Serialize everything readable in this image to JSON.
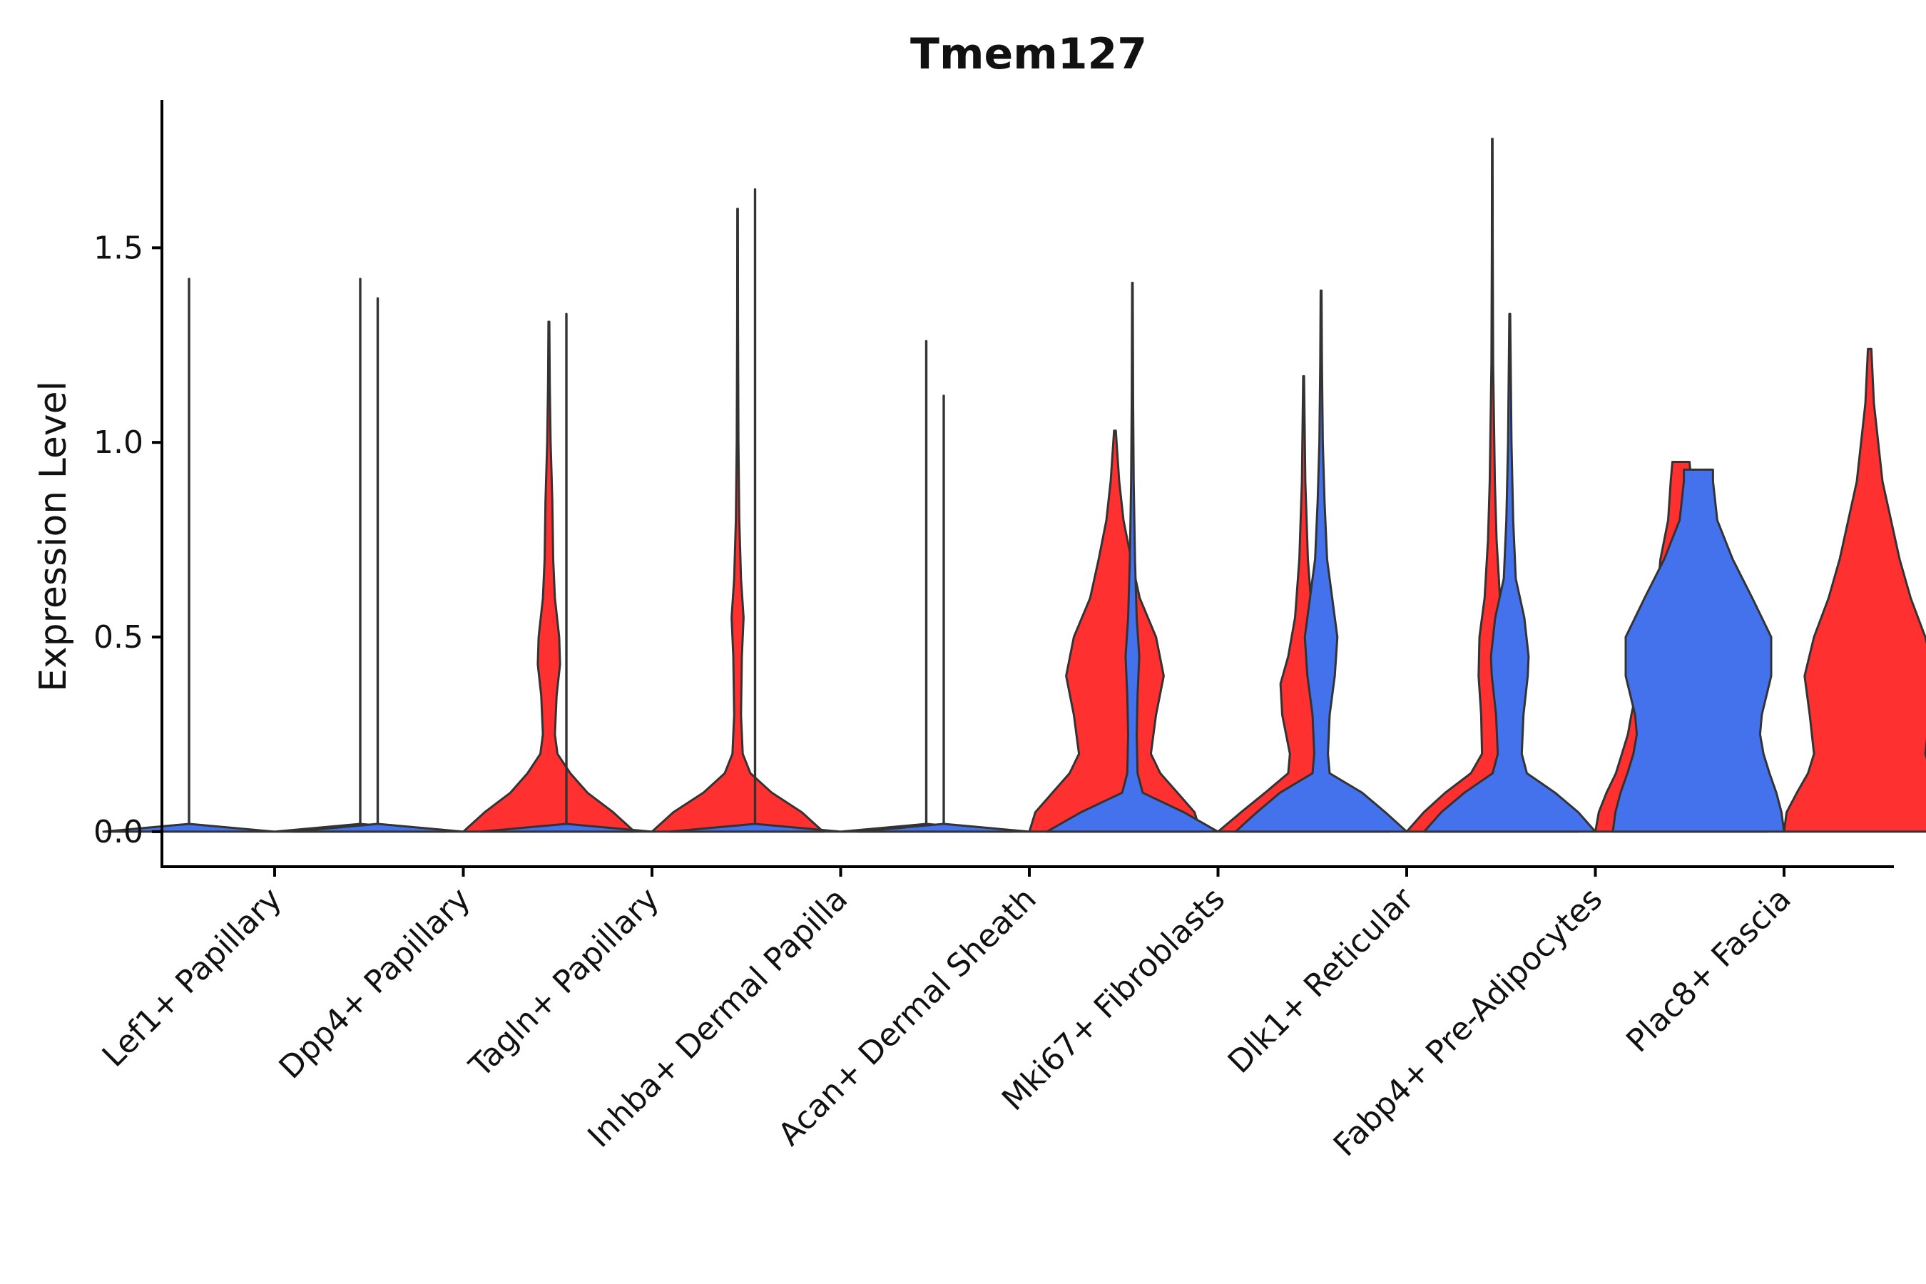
{
  "chart_data": {
    "type": "violin",
    "title": "Tmem127",
    "xlabel": "",
    "ylabel": "Expression Level",
    "ylim": [
      -0.09,
      1.88
    ],
    "yticks": [
      0.0,
      0.5,
      1.0,
      1.5
    ],
    "ytick_labels": [
      "0.0",
      "0.5",
      "1.0",
      "1.5"
    ],
    "grid": false,
    "legend": "none",
    "colors": {
      "blue": "#4471EC",
      "red": "#FF3030",
      "outline": "#333333"
    },
    "categories": [
      "Lef1+ Papillary",
      "Dpp4+ Papillary",
      "Tagln+ Papillary",
      "Inhba+ Dermal Papilla",
      "Acan+ Dermal Sheath",
      "Mki67+ Fibroblasts",
      "Dlk1+ Reticular",
      "Fabp4+ Pre-Adipocytes",
      "Plac8+ Fascia"
    ],
    "violins": [
      {
        "category": "Lef1+ Papillary",
        "split": "left",
        "color": "blue",
        "max": 1.42,
        "profile": [
          [
            0,
            1.0
          ],
          [
            0.02,
            0.002
          ],
          [
            1.42,
            0.002
          ]
        ]
      },
      {
        "category": "Lef1+ Papillary",
        "split": "right",
        "color": "red",
        "max": 1.42,
        "profile": [
          [
            0,
            1.0
          ],
          [
            0.02,
            0.002
          ],
          [
            1.42,
            0.002
          ]
        ]
      },
      {
        "category": "Dpp4+ Papillary",
        "split": "left",
        "color": "blue",
        "max": 1.37,
        "profile": [
          [
            0,
            1.0
          ],
          [
            0.02,
            0.002
          ],
          [
            1.37,
            0.002
          ]
        ]
      },
      {
        "category": "Dpp4+ Papillary",
        "split": "right",
        "color": "red",
        "max": 1.31,
        "profile": [
          [
            0,
            1.0
          ],
          [
            0.05,
            0.75
          ],
          [
            0.1,
            0.45
          ],
          [
            0.15,
            0.25
          ],
          [
            0.2,
            0.1
          ],
          [
            0.25,
            0.07
          ],
          [
            0.35,
            0.09
          ],
          [
            0.43,
            0.13
          ],
          [
            0.5,
            0.12
          ],
          [
            0.6,
            0.07
          ],
          [
            0.7,
            0.05
          ],
          [
            0.85,
            0.04
          ],
          [
            1.0,
            0.02
          ],
          [
            1.15,
            0.01
          ],
          [
            1.31,
            0.005
          ]
        ]
      },
      {
        "category": "Tagln+ Papillary",
        "split": "left",
        "color": "blue",
        "max": 1.33,
        "profile": [
          [
            0,
            1.0
          ],
          [
            0.02,
            0.002
          ],
          [
            1.33,
            0.002
          ]
        ]
      },
      {
        "category": "Tagln+ Papillary",
        "split": "right",
        "color": "red",
        "max": 1.6,
        "profile": [
          [
            0,
            1.0
          ],
          [
            0.05,
            0.75
          ],
          [
            0.1,
            0.4
          ],
          [
            0.15,
            0.15
          ],
          [
            0.2,
            0.06
          ],
          [
            0.3,
            0.04
          ],
          [
            0.45,
            0.05
          ],
          [
            0.55,
            0.07
          ],
          [
            0.65,
            0.04
          ],
          [
            0.8,
            0.02
          ],
          [
            1.0,
            0.01
          ],
          [
            1.3,
            0.005
          ],
          [
            1.6,
            0.003
          ]
        ]
      },
      {
        "category": "Inhba+ Dermal Papilla",
        "split": "left",
        "color": "blue",
        "max": 1.65,
        "profile": [
          [
            0,
            1.0
          ],
          [
            0.02,
            0.002
          ],
          [
            1.65,
            0.002
          ]
        ]
      },
      {
        "category": "Inhba+ Dermal Papilla",
        "split": "right",
        "color": "red",
        "max": 1.26,
        "profile": [
          [
            0,
            1.0
          ],
          [
            0.02,
            0.002
          ],
          [
            1.26,
            0.002
          ]
        ]
      },
      {
        "category": "Acan+ Dermal Sheath",
        "split": "left",
        "color": "blue",
        "max": 1.12,
        "profile": [
          [
            0,
            1.0
          ],
          [
            0.02,
            0.002
          ],
          [
            1.12,
            0.002
          ]
        ]
      },
      {
        "category": "Acan+ Dermal Sheath",
        "split": "right",
        "color": "red",
        "max": 1.03,
        "profile": [
          [
            0,
            1.0
          ],
          [
            0.05,
            0.93
          ],
          [
            0.1,
            0.73
          ],
          [
            0.15,
            0.53
          ],
          [
            0.2,
            0.42
          ],
          [
            0.3,
            0.48
          ],
          [
            0.4,
            0.57
          ],
          [
            0.5,
            0.48
          ],
          [
            0.6,
            0.29
          ],
          [
            0.7,
            0.19
          ],
          [
            0.8,
            0.1
          ],
          [
            0.9,
            0.05
          ],
          [
            1.03,
            0.01
          ]
        ]
      },
      {
        "category": "Mki67+ Fibroblasts",
        "split": "left",
        "color": "blue",
        "max": 1.41,
        "profile": [
          [
            0,
            1.0
          ],
          [
            0.05,
            0.6
          ],
          [
            0.1,
            0.12
          ],
          [
            0.15,
            0.06
          ],
          [
            0.25,
            0.05
          ],
          [
            0.35,
            0.06
          ],
          [
            0.45,
            0.08
          ],
          [
            0.55,
            0.05
          ],
          [
            0.7,
            0.03
          ],
          [
            0.9,
            0.015
          ],
          [
            1.1,
            0.008
          ],
          [
            1.41,
            0.003
          ]
        ]
      },
      {
        "category": "Mki67+ Fibroblasts",
        "split": "right",
        "color": "red",
        "max": 1.17,
        "profile": [
          [
            0,
            1.0
          ],
          [
            0.05,
            0.73
          ],
          [
            0.1,
            0.45
          ],
          [
            0.15,
            0.18
          ],
          [
            0.2,
            0.16
          ],
          [
            0.3,
            0.25
          ],
          [
            0.38,
            0.27
          ],
          [
            0.45,
            0.18
          ],
          [
            0.55,
            0.1
          ],
          [
            0.7,
            0.05
          ],
          [
            0.9,
            0.02
          ],
          [
            1.17,
            0.005
          ]
        ]
      },
      {
        "category": "Dlk1+ Reticular",
        "split": "left",
        "color": "blue",
        "max": 1.39,
        "profile": [
          [
            0,
            1.0
          ],
          [
            0.05,
            0.75
          ],
          [
            0.1,
            0.48
          ],
          [
            0.15,
            0.1
          ],
          [
            0.2,
            0.08
          ],
          [
            0.3,
            0.1
          ],
          [
            0.4,
            0.16
          ],
          [
            0.5,
            0.19
          ],
          [
            0.6,
            0.13
          ],
          [
            0.7,
            0.07
          ],
          [
            0.85,
            0.04
          ],
          [
            1.0,
            0.02
          ],
          [
            1.2,
            0.01
          ],
          [
            1.39,
            0.005
          ]
        ]
      },
      {
        "category": "Dlk1+ Reticular",
        "split": "right",
        "color": "red",
        "max": 1.78,
        "profile": [
          [
            0,
            1.0
          ],
          [
            0.05,
            0.8
          ],
          [
            0.1,
            0.55
          ],
          [
            0.15,
            0.25
          ],
          [
            0.2,
            0.12
          ],
          [
            0.3,
            0.13
          ],
          [
            0.4,
            0.16
          ],
          [
            0.5,
            0.15
          ],
          [
            0.6,
            0.09
          ],
          [
            0.75,
            0.05
          ],
          [
            0.9,
            0.03
          ],
          [
            1.2,
            0.01
          ],
          [
            1.5,
            0.005
          ],
          [
            1.78,
            0.003
          ]
        ]
      },
      {
        "category": "Fabp4+ Pre-Adipocytes",
        "split": "left",
        "color": "blue",
        "max": 1.33,
        "profile": [
          [
            0,
            1.0
          ],
          [
            0.05,
            0.8
          ],
          [
            0.1,
            0.53
          ],
          [
            0.15,
            0.2
          ],
          [
            0.2,
            0.14
          ],
          [
            0.3,
            0.16
          ],
          [
            0.4,
            0.21
          ],
          [
            0.45,
            0.22
          ],
          [
            0.55,
            0.17
          ],
          [
            0.65,
            0.07
          ],
          [
            0.8,
            0.04
          ],
          [
            1.0,
            0.02
          ],
          [
            1.33,
            0.005
          ]
        ]
      },
      {
        "category": "Fabp4+ Pre-Adipocytes",
        "split": "right",
        "color": "red",
        "max": 0.95,
        "profile": [
          [
            0,
            1.0
          ],
          [
            0.05,
            0.96
          ],
          [
            0.1,
            0.87
          ],
          [
            0.15,
            0.76
          ],
          [
            0.2,
            0.69
          ],
          [
            0.25,
            0.62
          ],
          [
            0.3,
            0.58
          ],
          [
            0.35,
            0.53
          ],
          [
            0.4,
            0.42
          ],
          [
            0.5,
            0.33
          ],
          [
            0.6,
            0.28
          ],
          [
            0.7,
            0.24
          ],
          [
            0.8,
            0.15
          ],
          [
            0.9,
            0.12
          ],
          [
            0.95,
            0.1
          ]
        ]
      },
      {
        "category": "Plac8+ Fascia",
        "split": "left",
        "color": "blue",
        "max": 0.93,
        "profile": [
          [
            0,
            1.0
          ],
          [
            0.05,
            0.97
          ],
          [
            0.1,
            0.91
          ],
          [
            0.15,
            0.83
          ],
          [
            0.2,
            0.76
          ],
          [
            0.25,
            0.72
          ],
          [
            0.3,
            0.74
          ],
          [
            0.4,
            0.85
          ],
          [
            0.5,
            0.85
          ],
          [
            0.6,
            0.63
          ],
          [
            0.7,
            0.4
          ],
          [
            0.8,
            0.22
          ],
          [
            0.9,
            0.17
          ],
          [
            0.93,
            0.17
          ]
        ]
      },
      {
        "category": "Plac8+ Fascia",
        "split": "right",
        "color": "red",
        "max": 1.24,
        "profile": [
          [
            0,
            1.0
          ],
          [
            0.05,
            0.97
          ],
          [
            0.1,
            0.85
          ],
          [
            0.15,
            0.72
          ],
          [
            0.2,
            0.65
          ],
          [
            0.3,
            0.7
          ],
          [
            0.4,
            0.76
          ],
          [
            0.5,
            0.65
          ],
          [
            0.6,
            0.48
          ],
          [
            0.7,
            0.35
          ],
          [
            0.8,
            0.25
          ],
          [
            0.9,
            0.15
          ],
          [
            1.0,
            0.1
          ],
          [
            1.1,
            0.05
          ],
          [
            1.24,
            0.02
          ]
        ]
      }
    ]
  }
}
